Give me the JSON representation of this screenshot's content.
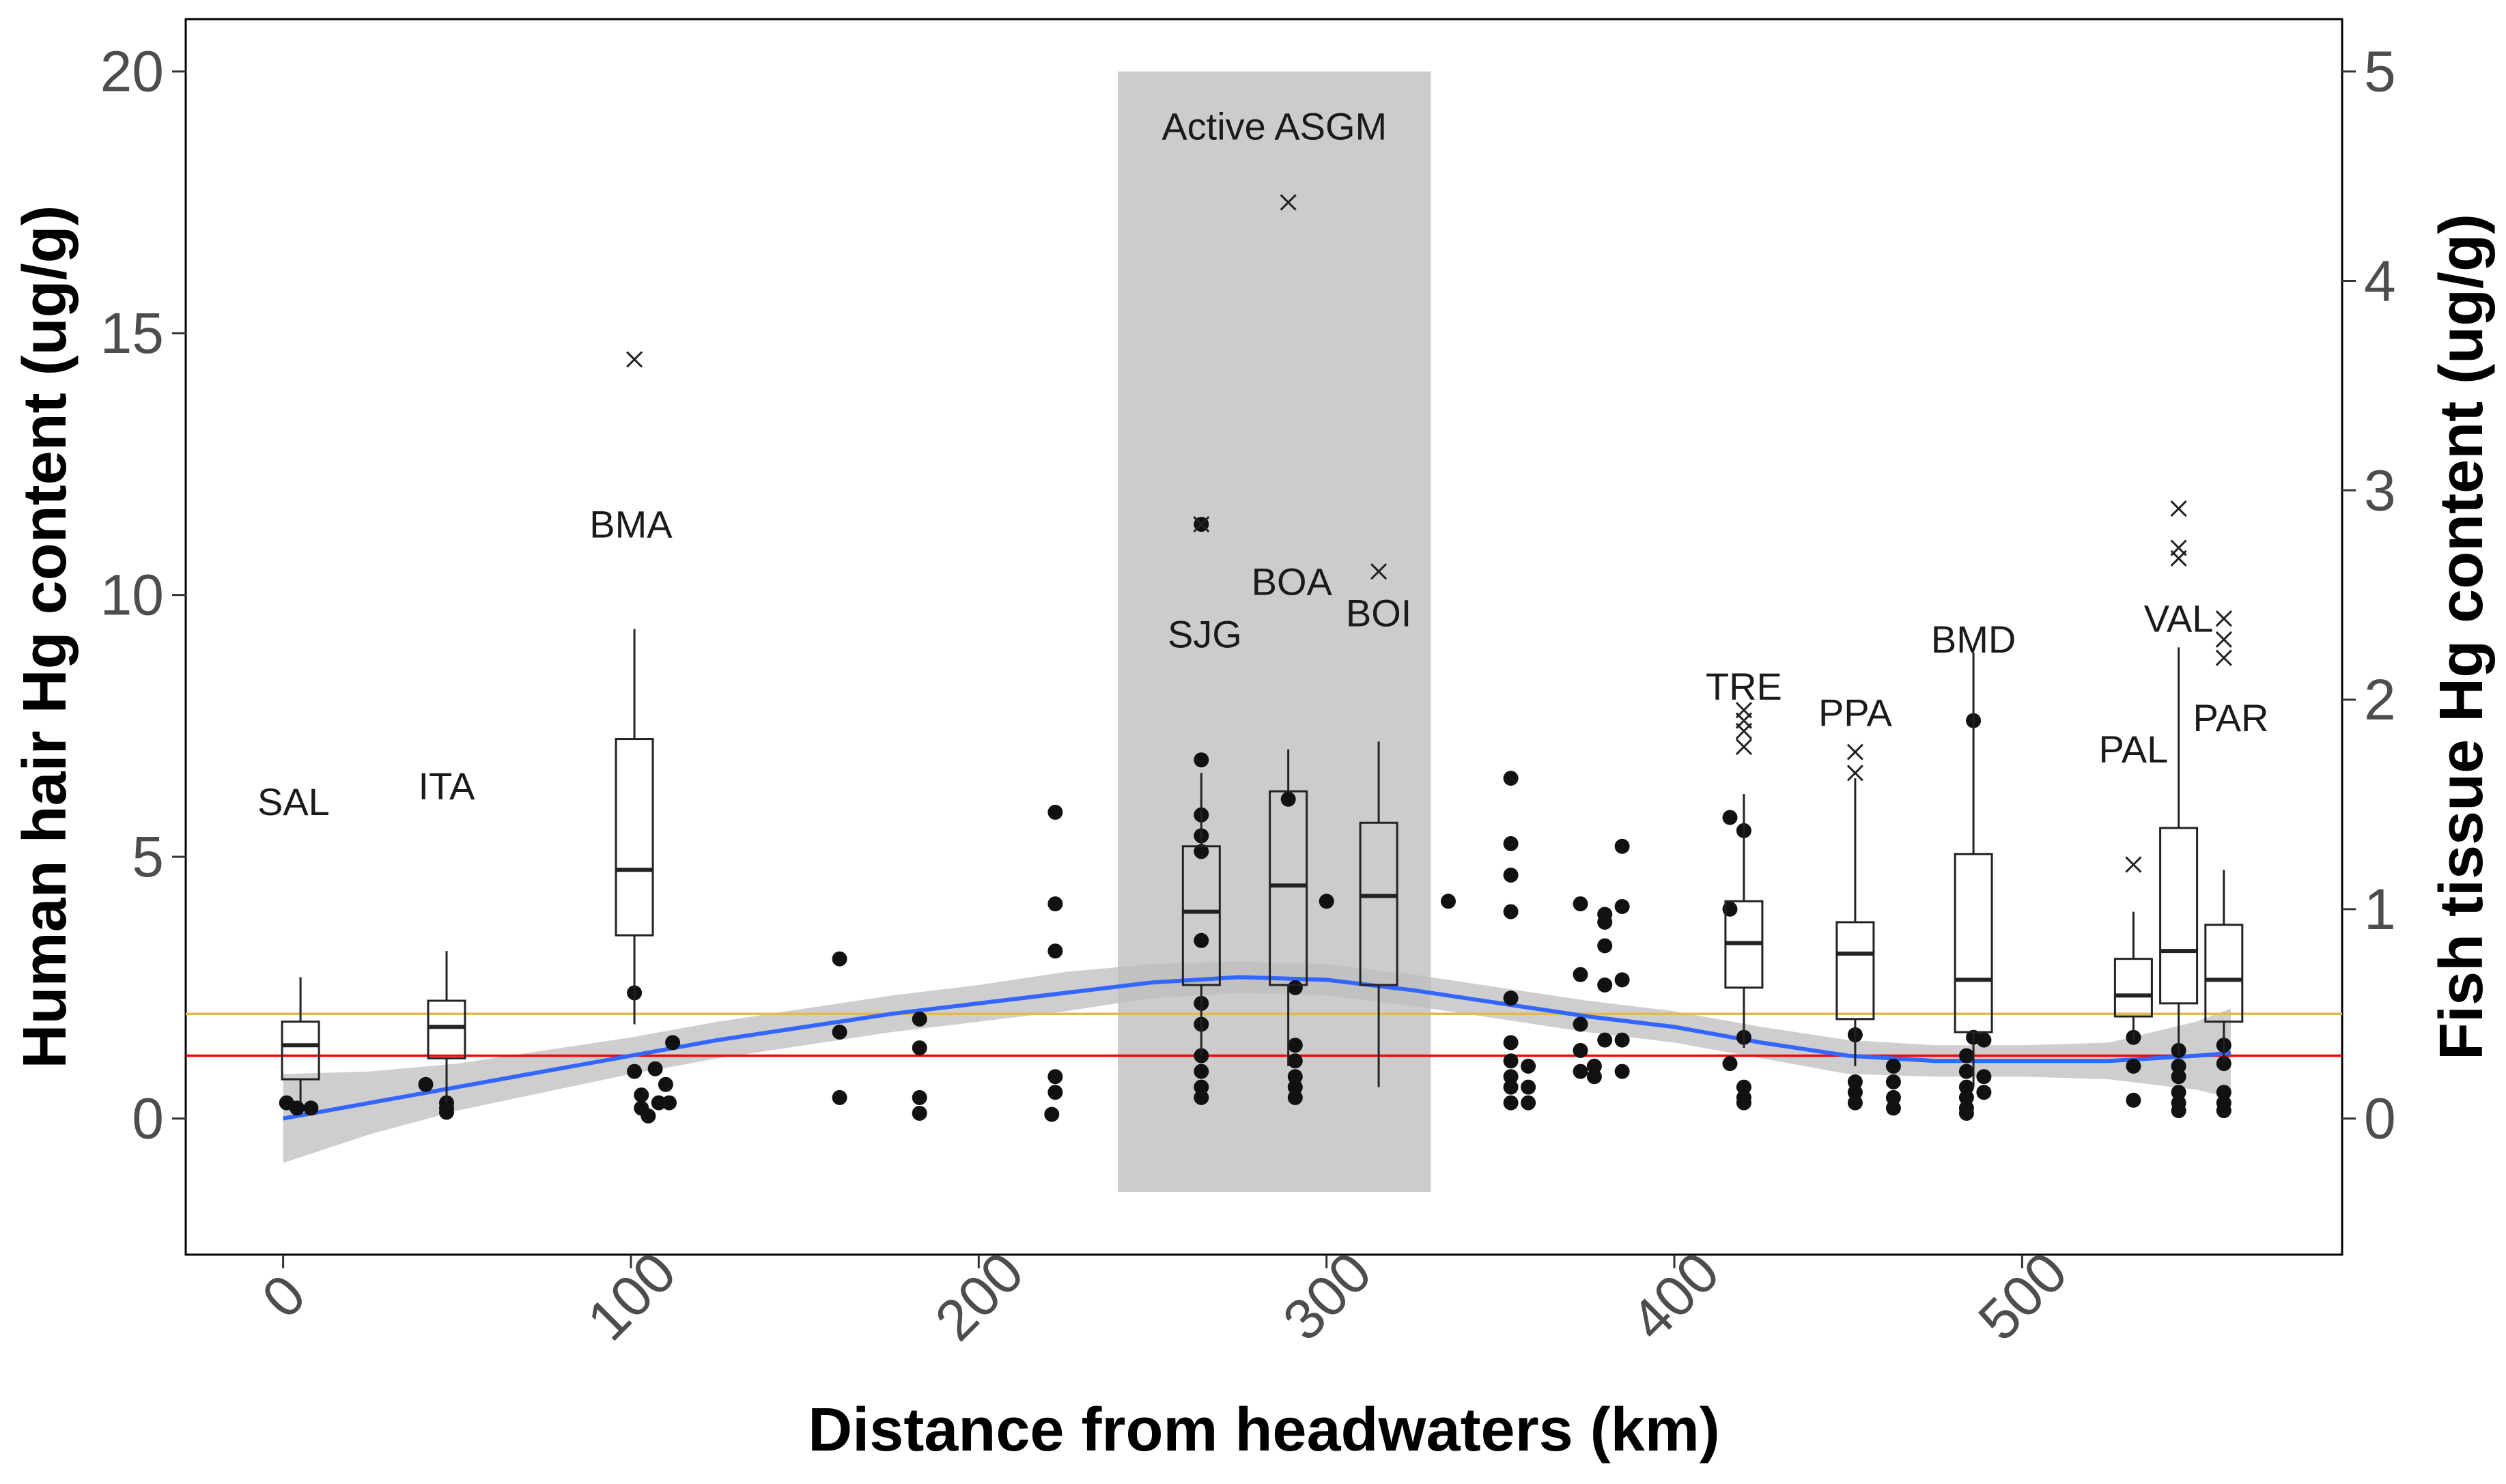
{
  "chart_data": {
    "type": "scatter",
    "title": "",
    "xlabel": "Distance from headwaters (km)",
    "ylabel_left": "Human hair Hg content (ug/g)",
    "ylabel_right": "Fish tissue Hg content (ug/g)",
    "xlim": [
      -28,
      592
    ],
    "ylim_left": [
      -2.6,
      21
    ],
    "ylim_right": [
      -0.65,
      5.25
    ],
    "x_ticks": [
      0,
      100,
      200,
      300,
      400,
      500
    ],
    "x_tick_labels": [
      "0",
      "100",
      "200",
      "300",
      "400",
      "500"
    ],
    "y_left_ticks": [
      0,
      5,
      10,
      15,
      20
    ],
    "y_left_tick_labels": [
      "0",
      "5",
      "10",
      "15",
      "20"
    ],
    "y_right_ticks": [
      0,
      1,
      2,
      3,
      4,
      5
    ],
    "y_right_tick_labels": [
      "0",
      "1",
      "2",
      "3",
      "4",
      "5"
    ],
    "shaded_region": {
      "x_start": 240,
      "x_end": 330,
      "y_start": -1.4,
      "y_end": 20,
      "label": "Active ASGM",
      "label_x": 285,
      "label_y": 18.7,
      "color": "#cccccc"
    },
    "reference_lines": [
      {
        "y": 2.0,
        "color": "#e6b84a",
        "axis": "left"
      },
      {
        "y": 1.2,
        "color": "#ff0000",
        "axis": "left"
      }
    ],
    "boxplots": [
      {
        "site": "SAL",
        "x": 5,
        "q1": 0.75,
        "median": 1.4,
        "q3": 1.85,
        "whisker_low": 0.3,
        "whisker_high": 2.7,
        "outliers": [],
        "label_x": 3,
        "label_y": 5.8
      },
      {
        "site": "ITA",
        "x": 47,
        "q1": 1.15,
        "median": 1.75,
        "q3": 2.25,
        "whisker_low": 0.3,
        "whisker_high": 3.2,
        "outliers": [],
        "label_x": 47,
        "label_y": 6.1
      },
      {
        "site": "BMA",
        "x": 101,
        "q1": 3.5,
        "median": 4.75,
        "q3": 7.25,
        "whisker_low": 1.8,
        "whisker_high": 9.35,
        "outliers": [
          14.5
        ],
        "label_x": 100,
        "label_y": 11.1
      },
      {
        "site": "SJG",
        "x": 264,
        "q1": 2.55,
        "median": 3.95,
        "q3": 5.2,
        "whisker_low": 1.2,
        "whisker_high": 6.6,
        "outliers": [
          11.35
        ],
        "label_x": 265,
        "label_y": 9.0
      },
      {
        "site": "BOA",
        "x": 289,
        "q1": 2.55,
        "median": 4.45,
        "q3": 6.25,
        "whisker_low": 1.0,
        "whisker_high": 7.05,
        "outliers": [
          17.5
        ],
        "label_x": 290,
        "label_y": 10.0
      },
      {
        "site": "BOI",
        "x": 315,
        "q1": 2.55,
        "median": 4.25,
        "q3": 5.65,
        "whisker_low": 0.6,
        "whisker_high": 7.2,
        "outliers": [
          10.45
        ],
        "label_x": 315,
        "label_y": 9.4
      },
      {
        "site": "TRE",
        "x": 420,
        "q1": 2.5,
        "median": 3.35,
        "q3": 4.15,
        "whisker_low": 1.35,
        "whisker_high": 6.2,
        "outliers": [
          7.1,
          7.4,
          7.6,
          7.8
        ],
        "label_x": 420,
        "label_y": 8.0
      },
      {
        "site": "PPA",
        "x": 452,
        "q1": 1.9,
        "median": 3.15,
        "q3": 3.75,
        "whisker_low": 1.0,
        "whisker_high": 6.5,
        "outliers": [
          6.6,
          7.0
        ],
        "label_x": 452,
        "label_y": 7.5
      },
      {
        "site": "BMD",
        "x": 486,
        "q1": 1.65,
        "median": 2.65,
        "q3": 5.05,
        "whisker_low": 0.6,
        "whisker_high": 8.9,
        "outliers": [],
        "label_x": 486,
        "label_y": 8.9
      },
      {
        "site": "PAL",
        "x": 532,
        "q1": 1.95,
        "median": 2.35,
        "q3": 3.05,
        "whisker_low": 1.5,
        "whisker_high": 3.95,
        "outliers": [
          4.85
        ],
        "label_x": 532,
        "label_y": 6.8
      },
      {
        "site": "VAL",
        "x": 545,
        "q1": 2.2,
        "median": 3.2,
        "q3": 5.55,
        "whisker_low": 1.2,
        "whisker_high": 9.0,
        "outliers": [
          10.7,
          10.9,
          11.65
        ],
        "label_x": 545,
        "label_y": 9.3
      },
      {
        "site": "PAR",
        "x": 558,
        "q1": 1.85,
        "median": 2.65,
        "q3": 3.7,
        "whisker_low": 1.1,
        "whisker_high": 4.75,
        "outliers": [
          8.8,
          9.15,
          9.55
        ],
        "label_x": 560,
        "label_y": 7.4
      }
    ],
    "fish_points": [
      {
        "x": 1,
        "y": 0.3
      },
      {
        "x": 4,
        "y": 0.2
      },
      {
        "x": 8,
        "y": 0.2
      },
      {
        "x": 41,
        "y": 0.65
      },
      {
        "x": 47,
        "y": 0.3
      },
      {
        "x": 47,
        "y": 0.2
      },
      {
        "x": 47,
        "y": 0.12
      },
      {
        "x": 101,
        "y": 2.4
      },
      {
        "x": 101,
        "y": 0.9
      },
      {
        "x": 103,
        "y": 0.45
      },
      {
        "x": 103,
        "y": 0.2
      },
      {
        "x": 105,
        "y": 0.05
      },
      {
        "x": 107,
        "y": 0.95
      },
      {
        "x": 108,
        "y": 0.3
      },
      {
        "x": 110,
        "y": 0.65
      },
      {
        "x": 112,
        "y": 1.45
      },
      {
        "x": 111,
        "y": 0.3
      },
      {
        "x": 160,
        "y": 3.05
      },
      {
        "x": 160,
        "y": 1.65
      },
      {
        "x": 160,
        "y": 0.4
      },
      {
        "x": 183,
        "y": 1.9
      },
      {
        "x": 183,
        "y": 1.35
      },
      {
        "x": 183,
        "y": 0.4
      },
      {
        "x": 183,
        "y": 0.1
      },
      {
        "x": 222,
        "y": 5.85
      },
      {
        "x": 222,
        "y": 4.1
      },
      {
        "x": 222,
        "y": 3.2
      },
      {
        "x": 222,
        "y": 0.8
      },
      {
        "x": 222,
        "y": 0.5
      },
      {
        "x": 221,
        "y": 0.08
      },
      {
        "x": 264,
        "y": 11.35
      },
      {
        "x": 264,
        "y": 6.85
      },
      {
        "x": 264,
        "y": 5.8
      },
      {
        "x": 264,
        "y": 5.4
      },
      {
        "x": 264,
        "y": 5.1
      },
      {
        "x": 264,
        "y": 3.4
      },
      {
        "x": 264,
        "y": 2.2
      },
      {
        "x": 264,
        "y": 1.8
      },
      {
        "x": 264,
        "y": 1.2
      },
      {
        "x": 264,
        "y": 0.9
      },
      {
        "x": 264,
        "y": 0.6
      },
      {
        "x": 264,
        "y": 0.4
      },
      {
        "x": 289,
        "y": 6.1
      },
      {
        "x": 291,
        "y": 2.5
      },
      {
        "x": 291,
        "y": 1.4
      },
      {
        "x": 291,
        "y": 1.1
      },
      {
        "x": 291,
        "y": 0.8
      },
      {
        "x": 291,
        "y": 0.6
      },
      {
        "x": 291,
        "y": 0.4
      },
      {
        "x": 300,
        "y": 4.15
      },
      {
        "x": 335,
        "y": 4.15
      },
      {
        "x": 353,
        "y": 6.5
      },
      {
        "x": 353,
        "y": 5.25
      },
      {
        "x": 353,
        "y": 4.65
      },
      {
        "x": 353,
        "y": 3.95
      },
      {
        "x": 353,
        "y": 2.3
      },
      {
        "x": 353,
        "y": 1.45
      },
      {
        "x": 353,
        "y": 1.1
      },
      {
        "x": 353,
        "y": 0.8
      },
      {
        "x": 353,
        "y": 0.6
      },
      {
        "x": 353,
        "y": 0.3
      },
      {
        "x": 358,
        "y": 1.0
      },
      {
        "x": 358,
        "y": 0.6
      },
      {
        "x": 358,
        "y": 0.3
      },
      {
        "x": 373,
        "y": 4.1
      },
      {
        "x": 373,
        "y": 2.75
      },
      {
        "x": 373,
        "y": 1.8
      },
      {
        "x": 373,
        "y": 1.3
      },
      {
        "x": 373,
        "y": 0.9
      },
      {
        "x": 377,
        "y": 1.0
      },
      {
        "x": 377,
        "y": 0.8
      },
      {
        "x": 380,
        "y": 3.9
      },
      {
        "x": 380,
        "y": 3.75
      },
      {
        "x": 380,
        "y": 3.3
      },
      {
        "x": 380,
        "y": 2.55
      },
      {
        "x": 380,
        "y": 1.5
      },
      {
        "x": 385,
        "y": 5.2
      },
      {
        "x": 385,
        "y": 4.05
      },
      {
        "x": 385,
        "y": 2.65
      },
      {
        "x": 385,
        "y": 1.5
      },
      {
        "x": 385,
        "y": 0.9
      },
      {
        "x": 416,
        "y": 5.75
      },
      {
        "x": 416,
        "y": 4.0
      },
      {
        "x": 416,
        "y": 1.05
      },
      {
        "x": 420,
        "y": 5.5
      },
      {
        "x": 420,
        "y": 1.55
      },
      {
        "x": 420,
        "y": 0.6
      },
      {
        "x": 420,
        "y": 0.4
      },
      {
        "x": 420,
        "y": 0.3
      },
      {
        "x": 452,
        "y": 1.6
      },
      {
        "x": 452,
        "y": 0.7
      },
      {
        "x": 452,
        "y": 0.5
      },
      {
        "x": 452,
        "y": 0.3
      },
      {
        "x": 463,
        "y": 1.0
      },
      {
        "x": 463,
        "y": 0.7
      },
      {
        "x": 463,
        "y": 0.4
      },
      {
        "x": 463,
        "y": 0.2
      },
      {
        "x": 486,
        "y": 7.6
      },
      {
        "x": 486,
        "y": 1.55
      },
      {
        "x": 484,
        "y": 1.2
      },
      {
        "x": 484,
        "y": 0.9
      },
      {
        "x": 484,
        "y": 0.6
      },
      {
        "x": 484,
        "y": 0.4
      },
      {
        "x": 484,
        "y": 0.2
      },
      {
        "x": 484,
        "y": 0.1
      },
      {
        "x": 489,
        "y": 1.5
      },
      {
        "x": 489,
        "y": 0.8
      },
      {
        "x": 489,
        "y": 0.5
      },
      {
        "x": 532,
        "y": 1.55
      },
      {
        "x": 532,
        "y": 1.0
      },
      {
        "x": 532,
        "y": 0.35
      },
      {
        "x": 545,
        "y": 1.3
      },
      {
        "x": 545,
        "y": 1.0
      },
      {
        "x": 545,
        "y": 0.8
      },
      {
        "x": 545,
        "y": 0.5
      },
      {
        "x": 545,
        "y": 0.3
      },
      {
        "x": 545,
        "y": 0.15
      },
      {
        "x": 558,
        "y": 1.4
      },
      {
        "x": 558,
        "y": 1.05
      },
      {
        "x": 558,
        "y": 0.5
      },
      {
        "x": 558,
        "y": 0.3
      },
      {
        "x": 558,
        "y": 0.15
      }
    ],
    "smooth_line": {
      "color": "#3366ff",
      "band_color": "#bdbdbd",
      "points": [
        {
          "x": 0,
          "y": 0.0,
          "lo": -0.85,
          "hi": 0.85
        },
        {
          "x": 25,
          "y": 0.3,
          "lo": -0.3,
          "hi": 0.9
        },
        {
          "x": 50,
          "y": 0.6,
          "lo": 0.15,
          "hi": 1.05
        },
        {
          "x": 75,
          "y": 0.9,
          "lo": 0.5,
          "hi": 1.3
        },
        {
          "x": 100,
          "y": 1.2,
          "lo": 0.85,
          "hi": 1.55
        },
        {
          "x": 125,
          "y": 1.5,
          "lo": 1.15,
          "hi": 1.85
        },
        {
          "x": 150,
          "y": 1.75,
          "lo": 1.4,
          "hi": 2.1
        },
        {
          "x": 175,
          "y": 2.0,
          "lo": 1.65,
          "hi": 2.35
        },
        {
          "x": 200,
          "y": 2.2,
          "lo": 1.85,
          "hi": 2.55
        },
        {
          "x": 225,
          "y": 2.4,
          "lo": 2.05,
          "hi": 2.8
        },
        {
          "x": 250,
          "y": 2.6,
          "lo": 2.3,
          "hi": 2.95
        },
        {
          "x": 275,
          "y": 2.7,
          "lo": 2.4,
          "hi": 3.0
        },
        {
          "x": 300,
          "y": 2.65,
          "lo": 2.35,
          "hi": 2.95
        },
        {
          "x": 325,
          "y": 2.45,
          "lo": 2.15,
          "hi": 2.75
        },
        {
          "x": 350,
          "y": 2.2,
          "lo": 1.9,
          "hi": 2.5
        },
        {
          "x": 375,
          "y": 1.95,
          "lo": 1.65,
          "hi": 2.25
        },
        {
          "x": 400,
          "y": 1.75,
          "lo": 1.45,
          "hi": 2.05
        },
        {
          "x": 425,
          "y": 1.45,
          "lo": 1.15,
          "hi": 1.75
        },
        {
          "x": 450,
          "y": 1.2,
          "lo": 0.85,
          "hi": 1.5
        },
        {
          "x": 475,
          "y": 1.1,
          "lo": 0.8,
          "hi": 1.4
        },
        {
          "x": 500,
          "y": 1.1,
          "lo": 0.8,
          "hi": 1.4
        },
        {
          "x": 525,
          "y": 1.1,
          "lo": 0.75,
          "hi": 1.45
        },
        {
          "x": 550,
          "y": 1.2,
          "lo": 0.55,
          "hi": 1.85
        },
        {
          "x": 560,
          "y": 1.25,
          "lo": 0.4,
          "hi": 2.1
        }
      ]
    }
  }
}
